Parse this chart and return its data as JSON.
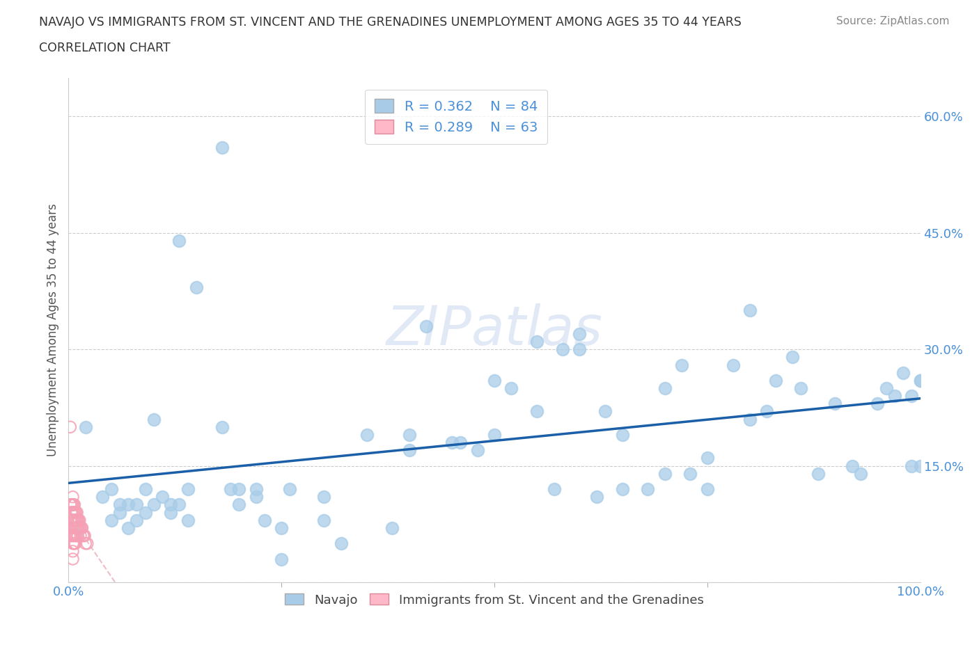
{
  "title_line1": "NAVAJO VS IMMIGRANTS FROM ST. VINCENT AND THE GRENADINES UNEMPLOYMENT AMONG AGES 35 TO 44 YEARS",
  "title_line2": "CORRELATION CHART",
  "source_text": "Source: ZipAtlas.com",
  "ylabel": "Unemployment Among Ages 35 to 44 years",
  "xlim": [
    0,
    1.0
  ],
  "ylim": [
    0,
    0.65
  ],
  "xticks": [
    0.0,
    1.0
  ],
  "xticklabels": [
    "0.0%",
    "100.0%"
  ],
  "yticks": [
    0.0,
    0.15,
    0.3,
    0.45,
    0.6
  ],
  "yticklabels": [
    "",
    "15.0%",
    "30.0%",
    "45.0%",
    "60.0%"
  ],
  "navajo_R": 0.362,
  "navajo_N": 84,
  "svg_R": 0.289,
  "svg_N": 63,
  "navajo_color": "#a8cce8",
  "svg_color": "#f5a0b4",
  "trend_navajo_color": "#1a5fa8",
  "trend_svg_color": "#e8b0b8",
  "background_color": "#ffffff",
  "navajo_x": [
    0.02,
    0.04,
    0.05,
    0.06,
    0.07,
    0.08,
    0.09,
    0.1,
    0.12,
    0.13,
    0.14,
    0.15,
    0.18,
    0.18,
    0.19,
    0.2,
    0.2,
    0.22,
    0.22,
    0.23,
    0.25,
    0.25,
    0.26,
    0.3,
    0.3,
    0.32,
    0.35,
    0.38,
    0.4,
    0.4,
    0.42,
    0.45,
    0.46,
    0.48,
    0.5,
    0.5,
    0.52,
    0.55,
    0.55,
    0.57,
    0.58,
    0.6,
    0.6,
    0.62,
    0.63,
    0.65,
    0.65,
    0.68,
    0.7,
    0.7,
    0.72,
    0.73,
    0.75,
    0.75,
    0.78,
    0.8,
    0.8,
    0.82,
    0.83,
    0.85,
    0.86,
    0.88,
    0.9,
    0.92,
    0.93,
    0.95,
    0.96,
    0.97,
    0.98,
    0.99,
    0.99,
    1.0,
    1.0,
    1.0,
    0.05,
    0.06,
    0.07,
    0.08,
    0.09,
    0.1,
    0.11,
    0.12,
    0.13,
    0.14
  ],
  "navajo_y": [
    0.2,
    0.11,
    0.12,
    0.1,
    0.1,
    0.1,
    0.12,
    0.21,
    0.1,
    0.44,
    0.12,
    0.38,
    0.56,
    0.2,
    0.12,
    0.12,
    0.1,
    0.11,
    0.12,
    0.08,
    0.07,
    0.03,
    0.12,
    0.11,
    0.08,
    0.05,
    0.19,
    0.07,
    0.19,
    0.17,
    0.33,
    0.18,
    0.18,
    0.17,
    0.26,
    0.19,
    0.25,
    0.31,
    0.22,
    0.12,
    0.3,
    0.3,
    0.32,
    0.11,
    0.22,
    0.19,
    0.12,
    0.12,
    0.14,
    0.25,
    0.28,
    0.14,
    0.16,
    0.12,
    0.28,
    0.21,
    0.35,
    0.22,
    0.26,
    0.29,
    0.25,
    0.14,
    0.23,
    0.15,
    0.14,
    0.23,
    0.25,
    0.24,
    0.27,
    0.24,
    0.15,
    0.26,
    0.26,
    0.15,
    0.08,
    0.09,
    0.07,
    0.08,
    0.09,
    0.1,
    0.11,
    0.09,
    0.1,
    0.08
  ],
  "svg_x": [
    0.002,
    0.002,
    0.002,
    0.003,
    0.003,
    0.003,
    0.003,
    0.003,
    0.004,
    0.004,
    0.004,
    0.004,
    0.004,
    0.005,
    0.005,
    0.005,
    0.005,
    0.005,
    0.005,
    0.005,
    0.005,
    0.005,
    0.006,
    0.006,
    0.006,
    0.006,
    0.006,
    0.006,
    0.007,
    0.007,
    0.007,
    0.007,
    0.007,
    0.007,
    0.008,
    0.008,
    0.008,
    0.008,
    0.008,
    0.009,
    0.009,
    0.009,
    0.009,
    0.01,
    0.01,
    0.01,
    0.01,
    0.011,
    0.011,
    0.011,
    0.012,
    0.012,
    0.013,
    0.013,
    0.014,
    0.014,
    0.015,
    0.016,
    0.017,
    0.018,
    0.019,
    0.02,
    0.022
  ],
  "svg_y": [
    0.1,
    0.08,
    0.06,
    0.1,
    0.09,
    0.08,
    0.07,
    0.06,
    0.1,
    0.09,
    0.08,
    0.07,
    0.06,
    0.11,
    0.1,
    0.09,
    0.08,
    0.07,
    0.06,
    0.05,
    0.04,
    0.03,
    0.1,
    0.09,
    0.08,
    0.07,
    0.06,
    0.05,
    0.1,
    0.09,
    0.08,
    0.07,
    0.06,
    0.05,
    0.09,
    0.08,
    0.07,
    0.06,
    0.05,
    0.09,
    0.08,
    0.07,
    0.06,
    0.09,
    0.08,
    0.07,
    0.06,
    0.08,
    0.07,
    0.06,
    0.08,
    0.07,
    0.08,
    0.07,
    0.07,
    0.06,
    0.07,
    0.07,
    0.06,
    0.06,
    0.06,
    0.05,
    0.05
  ],
  "svg_outlier_x": [
    0.002
  ],
  "svg_outlier_y": [
    0.2
  ]
}
